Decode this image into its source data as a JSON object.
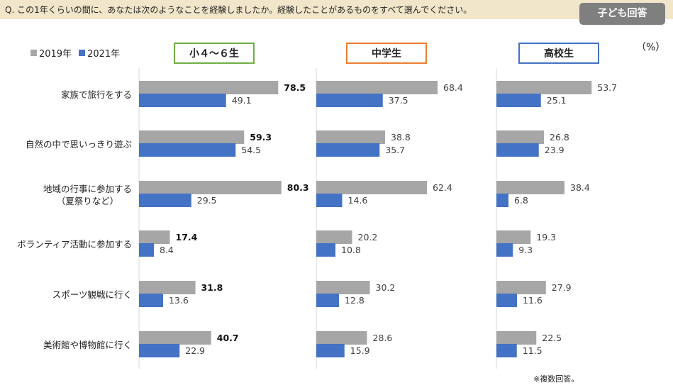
{
  "header": {
    "question": "Q. この1年くらいの間に、あなたは次のようなことを経験しましたか。経験したことがあるものをすべて選んでください。",
    "respondent_badge": "子ども回答"
  },
  "unit": "（%）",
  "footnote": "※複数回答。",
  "colors": {
    "series_2019": "#a6a6a6",
    "series_2021": "#4472c4",
    "elementary": "#70ad47",
    "junior": "#ed7d31",
    "high": "#4472c4"
  },
  "chart_data": {
    "type": "bar",
    "orientation": "horizontal",
    "categories": [
      "家族で旅行をする",
      "自然の中で思いっきり遊ぶ",
      "地域の行事に参加する（夏祭りなど）",
      "ボランティア活動に参加する",
      "スポーツ観戦に行く",
      "美術館や博物館に行く"
    ],
    "category_lines": [
      [
        "家族で旅行をする"
      ],
      [
        "自然の中で思いっきり遊ぶ"
      ],
      [
        "地域の行事に参加する",
        "（夏祭りなど）"
      ],
      [
        "ボランティア活動に参加する"
      ],
      [
        "スポーツ観戦に行く"
      ],
      [
        "美術館や博物館に行く"
      ]
    ],
    "legend": [
      "2019年",
      "2021年"
    ],
    "panels": [
      {
        "title": "小４～６生",
        "series": [
          {
            "name": "2019年",
            "values": [
              78.5,
              59.3,
              80.3,
              17.4,
              31.8,
              40.7
            ]
          },
          {
            "name": "2021年",
            "values": [
              49.1,
              54.5,
              29.5,
              8.4,
              13.6,
              22.9
            ]
          }
        ]
      },
      {
        "title": "中学生",
        "series": [
          {
            "name": "2019年",
            "values": [
              68.4,
              38.8,
              62.4,
              20.2,
              30.2,
              28.6
            ]
          },
          {
            "name": "2021年",
            "values": [
              37.5,
              35.7,
              14.6,
              10.8,
              12.8,
              15.9
            ]
          }
        ]
      },
      {
        "title": "高校生",
        "series": [
          {
            "name": "2019年",
            "values": [
              53.7,
              26.8,
              38.4,
              19.3,
              27.9,
              22.5
            ]
          },
          {
            "name": "2021年",
            "values": [
              25.1,
              23.9,
              6.8,
              9.3,
              11.6,
              11.5
            ]
          }
        ]
      }
    ],
    "xlim": [
      0,
      100
    ]
  }
}
